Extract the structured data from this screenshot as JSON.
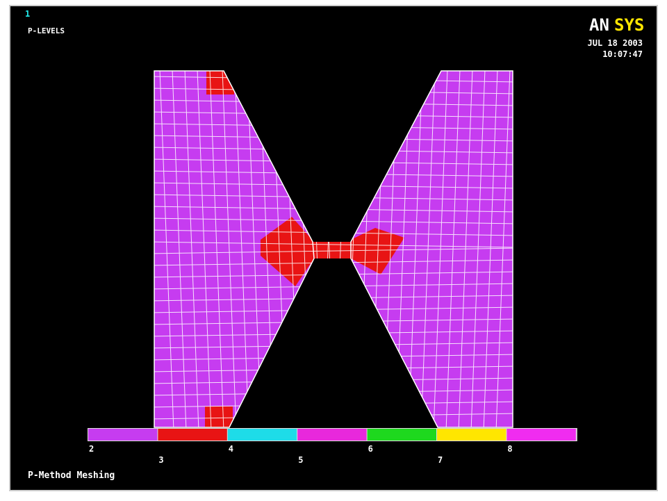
{
  "header": {
    "window_number": "1",
    "plot_label": "P-LEVELS",
    "logo": {
      "part1": "AN",
      "part2": "SYS"
    },
    "date": "JUL 18 2003",
    "time": "10:07:47"
  },
  "legend": {
    "labels": [
      "2",
      "3",
      "4",
      "5",
      "6",
      "7",
      "8"
    ],
    "colors": [
      "#c63cf0",
      "#e81414",
      "#1edce8",
      "#e828dc",
      "#1ed81e",
      "#ffe600",
      "#f02cf0"
    ]
  },
  "footer": "P-Method Meshing"
}
